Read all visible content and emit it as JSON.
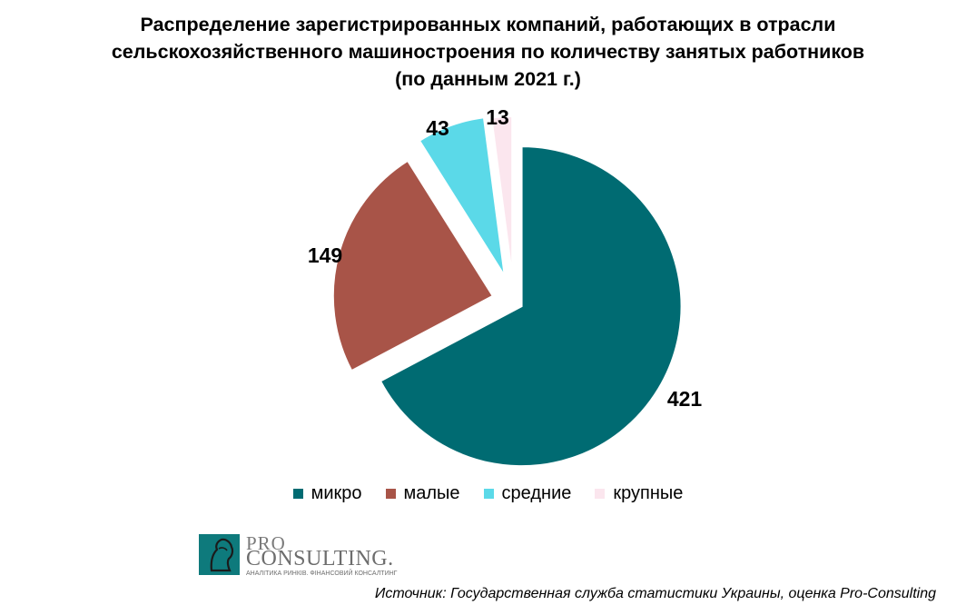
{
  "title": {
    "line1": "Распределение зарегистрированных компаний, работающих в отрасли",
    "line2": "сельскохозяйственного машиностроения по количеству занятых работников",
    "line3": "(по данным 2021 г.)"
  },
  "chart_data": {
    "type": "pie",
    "title": "Распределение зарегистрированных компаний, работающих в отрасли сельскохозяйственного машиностроения по количеству занятых работников (по данным 2021 г.)",
    "categories": [
      "микро",
      "малые",
      "средние",
      "крупные"
    ],
    "values": [
      421,
      149,
      43,
      13
    ],
    "colors": [
      "#006b72",
      "#a85448",
      "#5bd9e8",
      "#fbe6ee"
    ],
    "exploded": true,
    "legend_position": "bottom"
  },
  "logo": {
    "line1": "PRO",
    "line2": "CONSULTING.",
    "tagline": "АНАЛІТИКА РИНКІВ. ФІНАНСОВИЙ КОНСАЛТИНГ"
  },
  "source": "Источник: Государственная служба статистики Украины, оценка Pro-Consulting"
}
